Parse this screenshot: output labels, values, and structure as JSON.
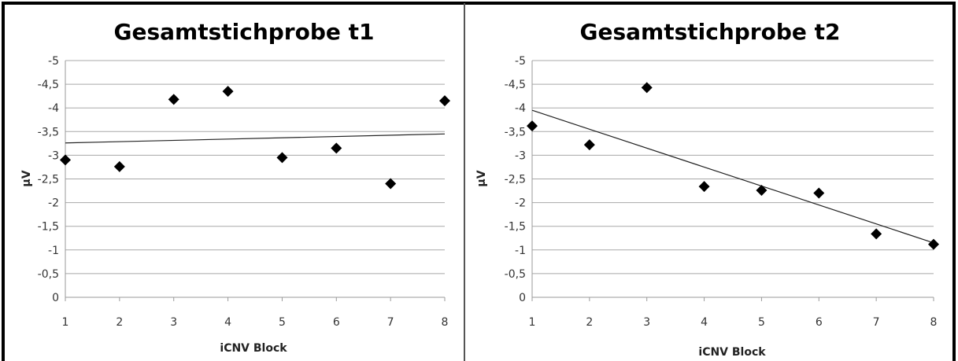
{
  "chart_data": [
    {
      "type": "scatter",
      "title": "Gesamtstichprobe t1",
      "xlabel": "iCNV Block",
      "ylabel": "µV",
      "xlim": [
        1,
        8
      ],
      "ylim": [
        0,
        -5
      ],
      "x_ticks": [
        "1",
        "2",
        "3",
        "4",
        "5",
        "6",
        "7",
        "8"
      ],
      "y_ticks": [
        "0",
        "-0,5",
        "-1",
        "-1,5",
        "-2",
        "-2,5",
        "-3",
        "-3,5",
        "-4",
        "-4,5",
        "-5"
      ],
      "grid": true,
      "trendline": {
        "x": [
          1,
          8
        ],
        "y": [
          -3.26,
          -3.45
        ]
      },
      "series": [
        {
          "x": [
            1,
            2,
            3,
            4,
            5,
            6,
            7,
            8
          ],
          "y": [
            -2.9,
            -2.76,
            -4.18,
            -4.35,
            -2.95,
            -3.15,
            -2.4,
            -4.15
          ]
        }
      ]
    },
    {
      "type": "scatter",
      "title": "Gesamtstichprobe t2",
      "xlabel": "iCNV Block",
      "ylabel": "µV",
      "xlim": [
        1,
        8
      ],
      "ylim": [
        0,
        -5
      ],
      "x_ticks": [
        "1",
        "2",
        "3",
        "4",
        "5",
        "6",
        "7",
        "8"
      ],
      "y_ticks": [
        "0",
        "-0,5",
        "-1",
        "-1,5",
        "-2",
        "-2,5",
        "-3",
        "-3,5",
        "-4",
        "-4,5",
        "-5"
      ],
      "grid": true,
      "trendline": {
        "x": [
          1,
          8
        ],
        "y": [
          -3.95,
          -1.15
        ]
      },
      "series": [
        {
          "x": [
            1,
            2,
            3,
            4,
            5,
            6,
            7,
            8
          ],
          "y": [
            -3.62,
            -3.22,
            -4.43,
            -2.34,
            -2.26,
            -2.2,
            -1.34,
            -1.12
          ]
        }
      ]
    }
  ]
}
